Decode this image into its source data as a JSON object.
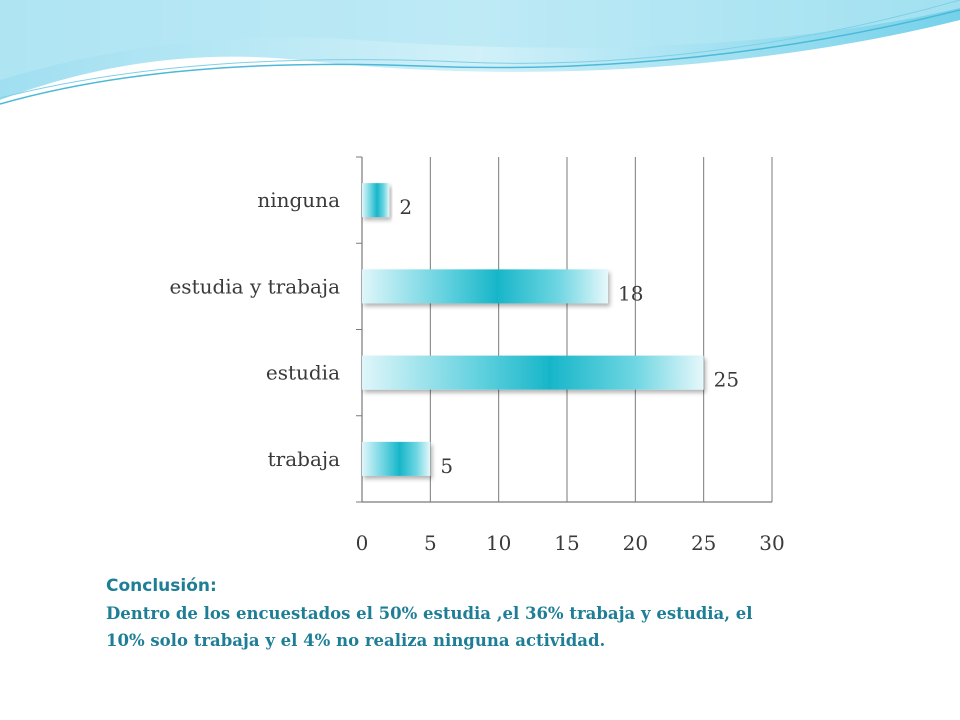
{
  "colors": {
    "bar_light": "#dff6fa",
    "bar_dark": "#17b6c9",
    "text_teal": "#1e7e96",
    "wave_blue": "#5cc9e6"
  },
  "chart_data": {
    "type": "bar",
    "orientation": "horizontal",
    "categories": [
      "ninguna",
      "estudia y trabaja",
      "estudia",
      "trabaja"
    ],
    "values": [
      2,
      18,
      25,
      5
    ],
    "data_labels": [
      "2",
      "18",
      "25",
      "5"
    ],
    "xlim": [
      0,
      30
    ],
    "xticks": [
      "0",
      "5",
      "10",
      "15",
      "20",
      "25",
      "30"
    ],
    "grid": true,
    "legend": "none"
  },
  "conclusion": {
    "title": "Conclusión:",
    "text": "Dentro de los encuestados el  50% estudia ,el 36% trabaja y estudia, el 10% solo trabaja  y el 4% no realiza ninguna actividad."
  }
}
